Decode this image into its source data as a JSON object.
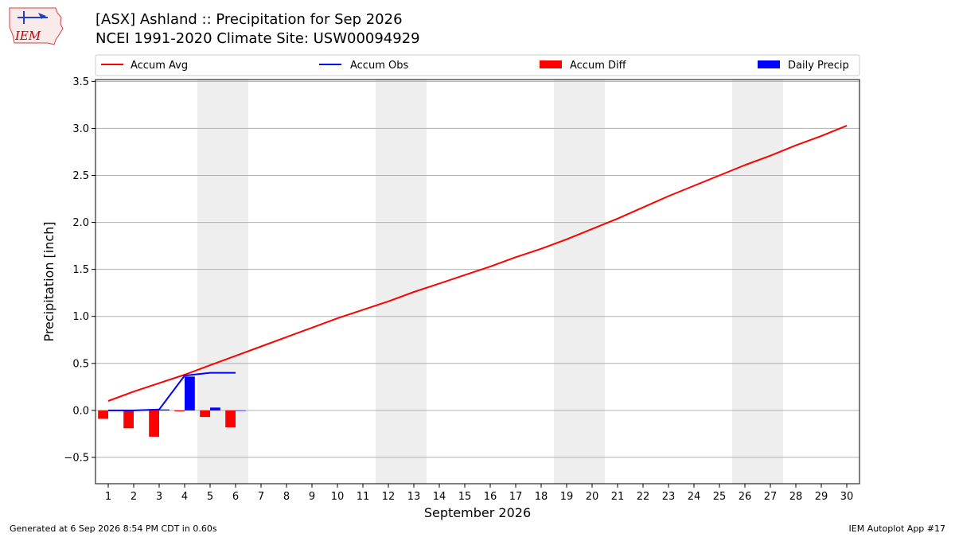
{
  "header": {
    "logo_text": "IEM",
    "title_line1": "[ASX] Ashland :: Precipitation for Sep 2026",
    "title_line2": "NCEI 1991-2020 Climate Site: USW00094929"
  },
  "footer": {
    "left": "Generated at 6 Sep 2026 8:54 PM CDT in 0.60s",
    "right": "IEM Autoplot App #17"
  },
  "colors": {
    "accum_avg": "#ff0000",
    "accum_obs": "#0000ff",
    "accum_diff": "#ff0000",
    "daily_precip": "#0000ff",
    "weekend_shade": "#eeeeee",
    "grid": "#b0b0b0"
  },
  "chart_data": {
    "type": "line",
    "xlabel": "September 2026",
    "ylabel": "Precipitation [inch]",
    "xlim": [
      0.5,
      30.5
    ],
    "ylim": [
      -0.78,
      3.52
    ],
    "grid": true,
    "legend_placement": "top",
    "x_ticks": [
      1,
      2,
      3,
      4,
      5,
      6,
      7,
      8,
      9,
      10,
      11,
      12,
      13,
      14,
      15,
      16,
      17,
      18,
      19,
      20,
      21,
      22,
      23,
      24,
      25,
      26,
      27,
      28,
      29,
      30
    ],
    "y_ticks": [
      -0.5,
      0.0,
      0.5,
      1.0,
      1.5,
      2.0,
      2.5,
      3.0,
      3.5
    ],
    "y_tick_labels": [
      "−0.5",
      "0.0",
      "0.5",
      "1.0",
      "1.5",
      "2.0",
      "2.5",
      "3.0",
      "3.5"
    ],
    "weekend_spans": [
      [
        4.5,
        6.5
      ],
      [
        11.5,
        13.5
      ],
      [
        18.5,
        20.5
      ],
      [
        25.5,
        27.5
      ]
    ],
    "legend": [
      "Accum Avg",
      "Accum Obs",
      "Accum Diff",
      "Daily Precip"
    ],
    "series": [
      {
        "name": "Accum Avg",
        "kind": "line",
        "x": [
          1,
          2,
          3,
          4,
          5,
          6,
          7,
          8,
          9,
          10,
          11,
          12,
          13,
          14,
          15,
          16,
          17,
          18,
          19,
          20,
          21,
          22,
          23,
          24,
          25,
          26,
          27,
          28,
          29,
          30
        ],
        "values": [
          0.1,
          0.2,
          0.29,
          0.38,
          0.48,
          0.58,
          0.68,
          0.78,
          0.88,
          0.98,
          1.07,
          1.16,
          1.26,
          1.35,
          1.44,
          1.53,
          1.63,
          1.72,
          1.82,
          1.93,
          2.04,
          2.16,
          2.28,
          2.39,
          2.5,
          2.61,
          2.71,
          2.82,
          2.92,
          3.03
        ]
      },
      {
        "name": "Accum Obs",
        "kind": "line",
        "x": [
          1,
          2,
          3,
          4,
          5,
          6
        ],
        "values": [
          0.0,
          0.0,
          0.01,
          0.37,
          0.4,
          0.4
        ]
      },
      {
        "name": "Accum Diff",
        "kind": "bar",
        "x": [
          1,
          2,
          3,
          4,
          5,
          6
        ],
        "values": [
          -0.09,
          -0.19,
          -0.28,
          -0.01,
          -0.07,
          -0.18
        ]
      },
      {
        "name": "Daily Precip",
        "kind": "bar",
        "x": [
          1,
          2,
          3,
          4,
          5,
          6
        ],
        "values": [
          0.0,
          0.0,
          0.01,
          0.36,
          0.03,
          0.0
        ]
      }
    ]
  }
}
